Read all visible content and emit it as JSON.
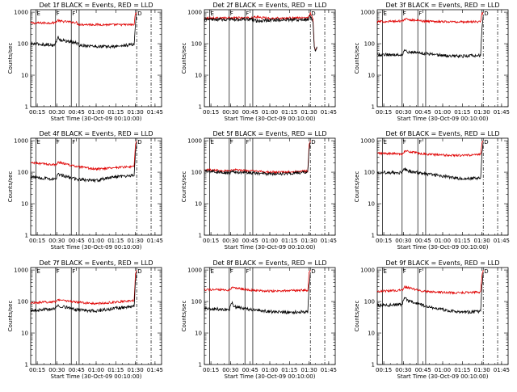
{
  "figure": {
    "legend_text": "BLACK = Events, RED = LLD",
    "xlabel": "Start Time (30-Oct-09 00:10:00)",
    "ylabel": "Counts/sec",
    "xtick_labels": [
      "00:15",
      "00:30",
      "00:45",
      "01:00",
      "01:15",
      "01:30",
      "01:45"
    ],
    "ytick_labels": [
      "1",
      "10",
      "100",
      "1000"
    ],
    "colors": {
      "events": "#000000",
      "lld": "#e00000",
      "axes": "#000000"
    },
    "markers": {
      "dets": [
        "E",
        "F",
        "F",
        "D"
      ]
    }
  },
  "chart_data": [
    {
      "type": "line",
      "title": "Det 1f",
      "scale": "log",
      "xlim": [
        "00:10",
        "01:50"
      ],
      "ylim": [
        1,
        1200
      ],
      "markers_x": [
        "00:14",
        "00:29",
        "00:41",
        "00:47",
        "01:31",
        "01:42"
      ],
      "series": [
        {
          "name": "RED",
          "values": [
            {
              "t": "00:10",
              "v": 450
            },
            {
              "t": "00:28",
              "v": 460
            },
            {
              "t": "00:29",
              "v": 480
            },
            {
              "t": "00:31",
              "v": 560
            },
            {
              "t": "00:32",
              "v": 520
            },
            {
              "t": "00:45",
              "v": 470
            },
            {
              "t": "00:46",
              "v": 410
            },
            {
              "t": "01:13",
              "v": 400
            },
            {
              "t": "01:29",
              "v": 400
            },
            {
              "t": "01:30",
              "v": 900
            },
            {
              "t": "01:31",
              "v": 1000
            }
          ]
        },
        {
          "name": "BLACK",
          "values": [
            {
              "t": "00:10",
              "v": 100
            },
            {
              "t": "00:28",
              "v": 90
            },
            {
              "t": "00:29",
              "v": 105
            },
            {
              "t": "00:31",
              "v": 160
            },
            {
              "t": "00:33",
              "v": 130
            },
            {
              "t": "00:45",
              "v": 105
            },
            {
              "t": "00:47",
              "v": 90
            },
            {
              "t": "01:00",
              "v": 82
            },
            {
              "t": "01:13",
              "v": 80
            },
            {
              "t": "01:29",
              "v": 95
            },
            {
              "t": "01:30",
              "v": 400
            },
            {
              "t": "01:31",
              "v": 900
            }
          ]
        }
      ]
    },
    {
      "type": "line",
      "title": "Det 2f",
      "scale": "log",
      "xlim": [
        "00:10",
        "01:50"
      ],
      "ylim": [
        1,
        1200
      ],
      "markers_x": [
        "00:14",
        "00:29",
        "00:41",
        "00:47",
        "01:31",
        "01:42"
      ],
      "series": [
        {
          "name": "RED",
          "values": [
            {
              "t": "00:10",
              "v": 650
            },
            {
              "t": "00:45",
              "v": 660
            },
            {
              "t": "00:50",
              "v": 700
            },
            {
              "t": "01:00",
              "v": 640
            },
            {
              "t": "01:29",
              "v": 660
            },
            {
              "t": "01:31",
              "v": 900
            },
            {
              "t": "01:33",
              "v": 600
            },
            {
              "t": "01:34",
              "v": 80
            },
            {
              "t": "01:35",
              "v": 60
            },
            {
              "t": "01:36",
              "v": 80
            }
          ]
        },
        {
          "name": "BLACK",
          "values": [
            {
              "t": "00:10",
              "v": 580
            },
            {
              "t": "00:45",
              "v": 590
            },
            {
              "t": "00:50",
              "v": 520
            },
            {
              "t": "01:00",
              "v": 560
            },
            {
              "t": "01:29",
              "v": 580
            },
            {
              "t": "01:31",
              "v": 800
            },
            {
              "t": "01:33",
              "v": 500
            },
            {
              "t": "01:34",
              "v": 80
            },
            {
              "t": "01:35",
              "v": 60
            },
            {
              "t": "01:36",
              "v": 80
            }
          ]
        }
      ]
    },
    {
      "type": "line",
      "title": "Det 3f",
      "scale": "log",
      "xlim": [
        "00:10",
        "01:50"
      ],
      "ylim": [
        1,
        1200
      ],
      "markers_x": [
        "00:14",
        "00:29",
        "00:41",
        "00:47",
        "01:31",
        "01:42"
      ],
      "series": [
        {
          "name": "RED",
          "values": [
            {
              "t": "00:10",
              "v": 500
            },
            {
              "t": "00:29",
              "v": 520
            },
            {
              "t": "00:31",
              "v": 600
            },
            {
              "t": "00:45",
              "v": 520
            },
            {
              "t": "01:13",
              "v": 490
            },
            {
              "t": "01:29",
              "v": 500
            },
            {
              "t": "01:30",
              "v": 900
            },
            {
              "t": "01:31",
              "v": 1000
            }
          ]
        },
        {
          "name": "BLACK",
          "values": [
            {
              "t": "00:10",
              "v": 45
            },
            {
              "t": "00:29",
              "v": 45
            },
            {
              "t": "00:31",
              "v": 65
            },
            {
              "t": "00:33",
              "v": 55
            },
            {
              "t": "00:45",
              "v": 50
            },
            {
              "t": "01:00",
              "v": 42
            },
            {
              "t": "01:13",
              "v": 40
            },
            {
              "t": "01:29",
              "v": 42
            },
            {
              "t": "01:30",
              "v": 300
            },
            {
              "t": "01:31",
              "v": 800
            }
          ]
        }
      ]
    },
    {
      "type": "line",
      "title": "Det 4f",
      "scale": "log",
      "xlim": [
        "00:10",
        "01:50"
      ],
      "ylim": [
        1,
        1200
      ],
      "markers_x": [
        "00:14",
        "00:29",
        "00:41",
        "00:47",
        "01:31",
        "01:42"
      ],
      "series": [
        {
          "name": "RED",
          "values": [
            {
              "t": "00:10",
              "v": 200
            },
            {
              "t": "00:29",
              "v": 170
            },
            {
              "t": "00:31",
              "v": 210
            },
            {
              "t": "00:45",
              "v": 150
            },
            {
              "t": "01:00",
              "v": 125
            },
            {
              "t": "01:13",
              "v": 140
            },
            {
              "t": "01:29",
              "v": 150
            },
            {
              "t": "01:30",
              "v": 700
            },
            {
              "t": "01:31",
              "v": 1000
            }
          ]
        },
        {
          "name": "BLACK",
          "values": [
            {
              "t": "00:10",
              "v": 70
            },
            {
              "t": "00:29",
              "v": 60
            },
            {
              "t": "00:31",
              "v": 85
            },
            {
              "t": "00:45",
              "v": 60
            },
            {
              "t": "01:00",
              "v": 55
            },
            {
              "t": "01:13",
              "v": 70
            },
            {
              "t": "01:29",
              "v": 80
            },
            {
              "t": "01:30",
              "v": 400
            },
            {
              "t": "01:31",
              "v": 900
            }
          ]
        }
      ]
    },
    {
      "type": "line",
      "title": "Det 5f",
      "scale": "log",
      "xlim": [
        "00:10",
        "01:50"
      ],
      "ylim": [
        1,
        1200
      ],
      "markers_x": [
        "00:14",
        "00:29",
        "00:41",
        "00:47",
        "01:31",
        "01:42"
      ],
      "series": [
        {
          "name": "RED",
          "values": [
            {
              "t": "00:10",
              "v": 120
            },
            {
              "t": "00:29",
              "v": 110
            },
            {
              "t": "00:31",
              "v": 120
            },
            {
              "t": "00:45",
              "v": 110
            },
            {
              "t": "01:00",
              "v": 100
            },
            {
              "t": "01:13",
              "v": 100
            },
            {
              "t": "01:29",
              "v": 110
            },
            {
              "t": "01:30",
              "v": 700
            },
            {
              "t": "01:31",
              "v": 1000
            }
          ]
        },
        {
          "name": "BLACK",
          "values": [
            {
              "t": "00:10",
              "v": 110
            },
            {
              "t": "00:29",
              "v": 95
            },
            {
              "t": "00:31",
              "v": 105
            },
            {
              "t": "00:45",
              "v": 95
            },
            {
              "t": "01:00",
              "v": 88
            },
            {
              "t": "01:13",
              "v": 90
            },
            {
              "t": "01:29",
              "v": 100
            },
            {
              "t": "01:30",
              "v": 500
            },
            {
              "t": "01:31",
              "v": 900
            }
          ]
        }
      ]
    },
    {
      "type": "line",
      "title": "Det 6f",
      "scale": "log",
      "xlim": [
        "00:10",
        "01:50"
      ],
      "ylim": [
        1,
        1200
      ],
      "markers_x": [
        "00:14",
        "00:29",
        "00:41",
        "00:47",
        "01:31",
        "01:42"
      ],
      "series": [
        {
          "name": "RED",
          "values": [
            {
              "t": "00:10",
              "v": 400
            },
            {
              "t": "00:29",
              "v": 380
            },
            {
              "t": "00:31",
              "v": 470
            },
            {
              "t": "00:45",
              "v": 380
            },
            {
              "t": "01:00",
              "v": 350
            },
            {
              "t": "01:13",
              "v": 340
            },
            {
              "t": "01:29",
              "v": 360
            },
            {
              "t": "01:30",
              "v": 800
            },
            {
              "t": "01:31",
              "v": 1000
            }
          ]
        },
        {
          "name": "BLACK",
          "values": [
            {
              "t": "00:10",
              "v": 100
            },
            {
              "t": "00:29",
              "v": 95
            },
            {
              "t": "00:31",
              "v": 130
            },
            {
              "t": "00:33",
              "v": 110
            },
            {
              "t": "00:45",
              "v": 90
            },
            {
              "t": "01:00",
              "v": 75
            },
            {
              "t": "01:13",
              "v": 62
            },
            {
              "t": "01:29",
              "v": 65
            },
            {
              "t": "01:30",
              "v": 400
            },
            {
              "t": "01:31",
              "v": 900
            }
          ]
        }
      ]
    },
    {
      "type": "line",
      "title": "Det 7f",
      "scale": "log",
      "xlim": [
        "00:10",
        "01:50"
      ],
      "ylim": [
        1,
        1200
      ],
      "markers_x": [
        "00:14",
        "00:29",
        "00:41",
        "00:47",
        "01:31",
        "01:42"
      ],
      "series": [
        {
          "name": "RED",
          "values": [
            {
              "t": "00:10",
              "v": 90
            },
            {
              "t": "00:29",
              "v": 100
            },
            {
              "t": "00:31",
              "v": 115
            },
            {
              "t": "00:45",
              "v": 95
            },
            {
              "t": "01:00",
              "v": 85
            },
            {
              "t": "01:13",
              "v": 95
            },
            {
              "t": "01:29",
              "v": 105
            },
            {
              "t": "01:30",
              "v": 700
            },
            {
              "t": "01:31",
              "v": 1000
            }
          ]
        },
        {
          "name": "BLACK",
          "values": [
            {
              "t": "00:10",
              "v": 50
            },
            {
              "t": "00:29",
              "v": 60
            },
            {
              "t": "00:31",
              "v": 75
            },
            {
              "t": "00:45",
              "v": 55
            },
            {
              "t": "01:00",
              "v": 50
            },
            {
              "t": "01:13",
              "v": 60
            },
            {
              "t": "01:29",
              "v": 70
            },
            {
              "t": "01:30",
              "v": 400
            },
            {
              "t": "01:31",
              "v": 900
            }
          ]
        }
      ]
    },
    {
      "type": "line",
      "title": "Det 8f",
      "scale": "log",
      "xlim": [
        "00:10",
        "01:50"
      ],
      "ylim": [
        1,
        1200
      ],
      "markers_x": [
        "00:14",
        "00:29",
        "00:41",
        "00:47",
        "01:31",
        "01:42"
      ],
      "series": [
        {
          "name": "RED",
          "values": [
            {
              "t": "00:10",
              "v": 240
            },
            {
              "t": "00:29",
              "v": 230
            },
            {
              "t": "00:31",
              "v": 280
            },
            {
              "t": "00:45",
              "v": 230
            },
            {
              "t": "01:00",
              "v": 215
            },
            {
              "t": "01:13",
              "v": 220
            },
            {
              "t": "01:29",
              "v": 230
            },
            {
              "t": "01:30",
              "v": 800
            },
            {
              "t": "01:31",
              "v": 1000
            }
          ]
        },
        {
          "name": "BLACK",
          "values": [
            {
              "t": "00:10",
              "v": 60
            },
            {
              "t": "00:29",
              "v": 55
            },
            {
              "t": "00:31",
              "v": 90
            },
            {
              "t": "00:33",
              "v": 70
            },
            {
              "t": "00:45",
              "v": 55
            },
            {
              "t": "01:00",
              "v": 48
            },
            {
              "t": "01:13",
              "v": 45
            },
            {
              "t": "01:29",
              "v": 48
            },
            {
              "t": "01:30",
              "v": 300
            },
            {
              "t": "01:31",
              "v": 800
            }
          ]
        }
      ]
    },
    {
      "type": "line",
      "title": "Det 9f",
      "scale": "log",
      "xlim": [
        "00:10",
        "01:50"
      ],
      "ylim": [
        1,
        1200
      ],
      "markers_x": [
        "00:14",
        "00:29",
        "00:41",
        "00:47",
        "01:31",
        "01:42"
      ],
      "series": [
        {
          "name": "RED",
          "values": [
            {
              "t": "00:10",
              "v": 210
            },
            {
              "t": "00:29",
              "v": 230
            },
            {
              "t": "00:31",
              "v": 290
            },
            {
              "t": "00:45",
              "v": 210
            },
            {
              "t": "01:00",
              "v": 195
            },
            {
              "t": "01:13",
              "v": 190
            },
            {
              "t": "01:29",
              "v": 200
            },
            {
              "t": "01:30",
              "v": 700
            },
            {
              "t": "01:31",
              "v": 1000
            }
          ]
        },
        {
          "name": "BLACK",
          "values": [
            {
              "t": "00:10",
              "v": 75
            },
            {
              "t": "00:29",
              "v": 80
            },
            {
              "t": "00:31",
              "v": 140
            },
            {
              "t": "00:33",
              "v": 105
            },
            {
              "t": "00:45",
              "v": 75
            },
            {
              "t": "01:00",
              "v": 55
            },
            {
              "t": "01:13",
              "v": 45
            },
            {
              "t": "01:29",
              "v": 48
            },
            {
              "t": "01:30",
              "v": 300
            },
            {
              "t": "01:31",
              "v": 800
            }
          ]
        }
      ]
    }
  ]
}
